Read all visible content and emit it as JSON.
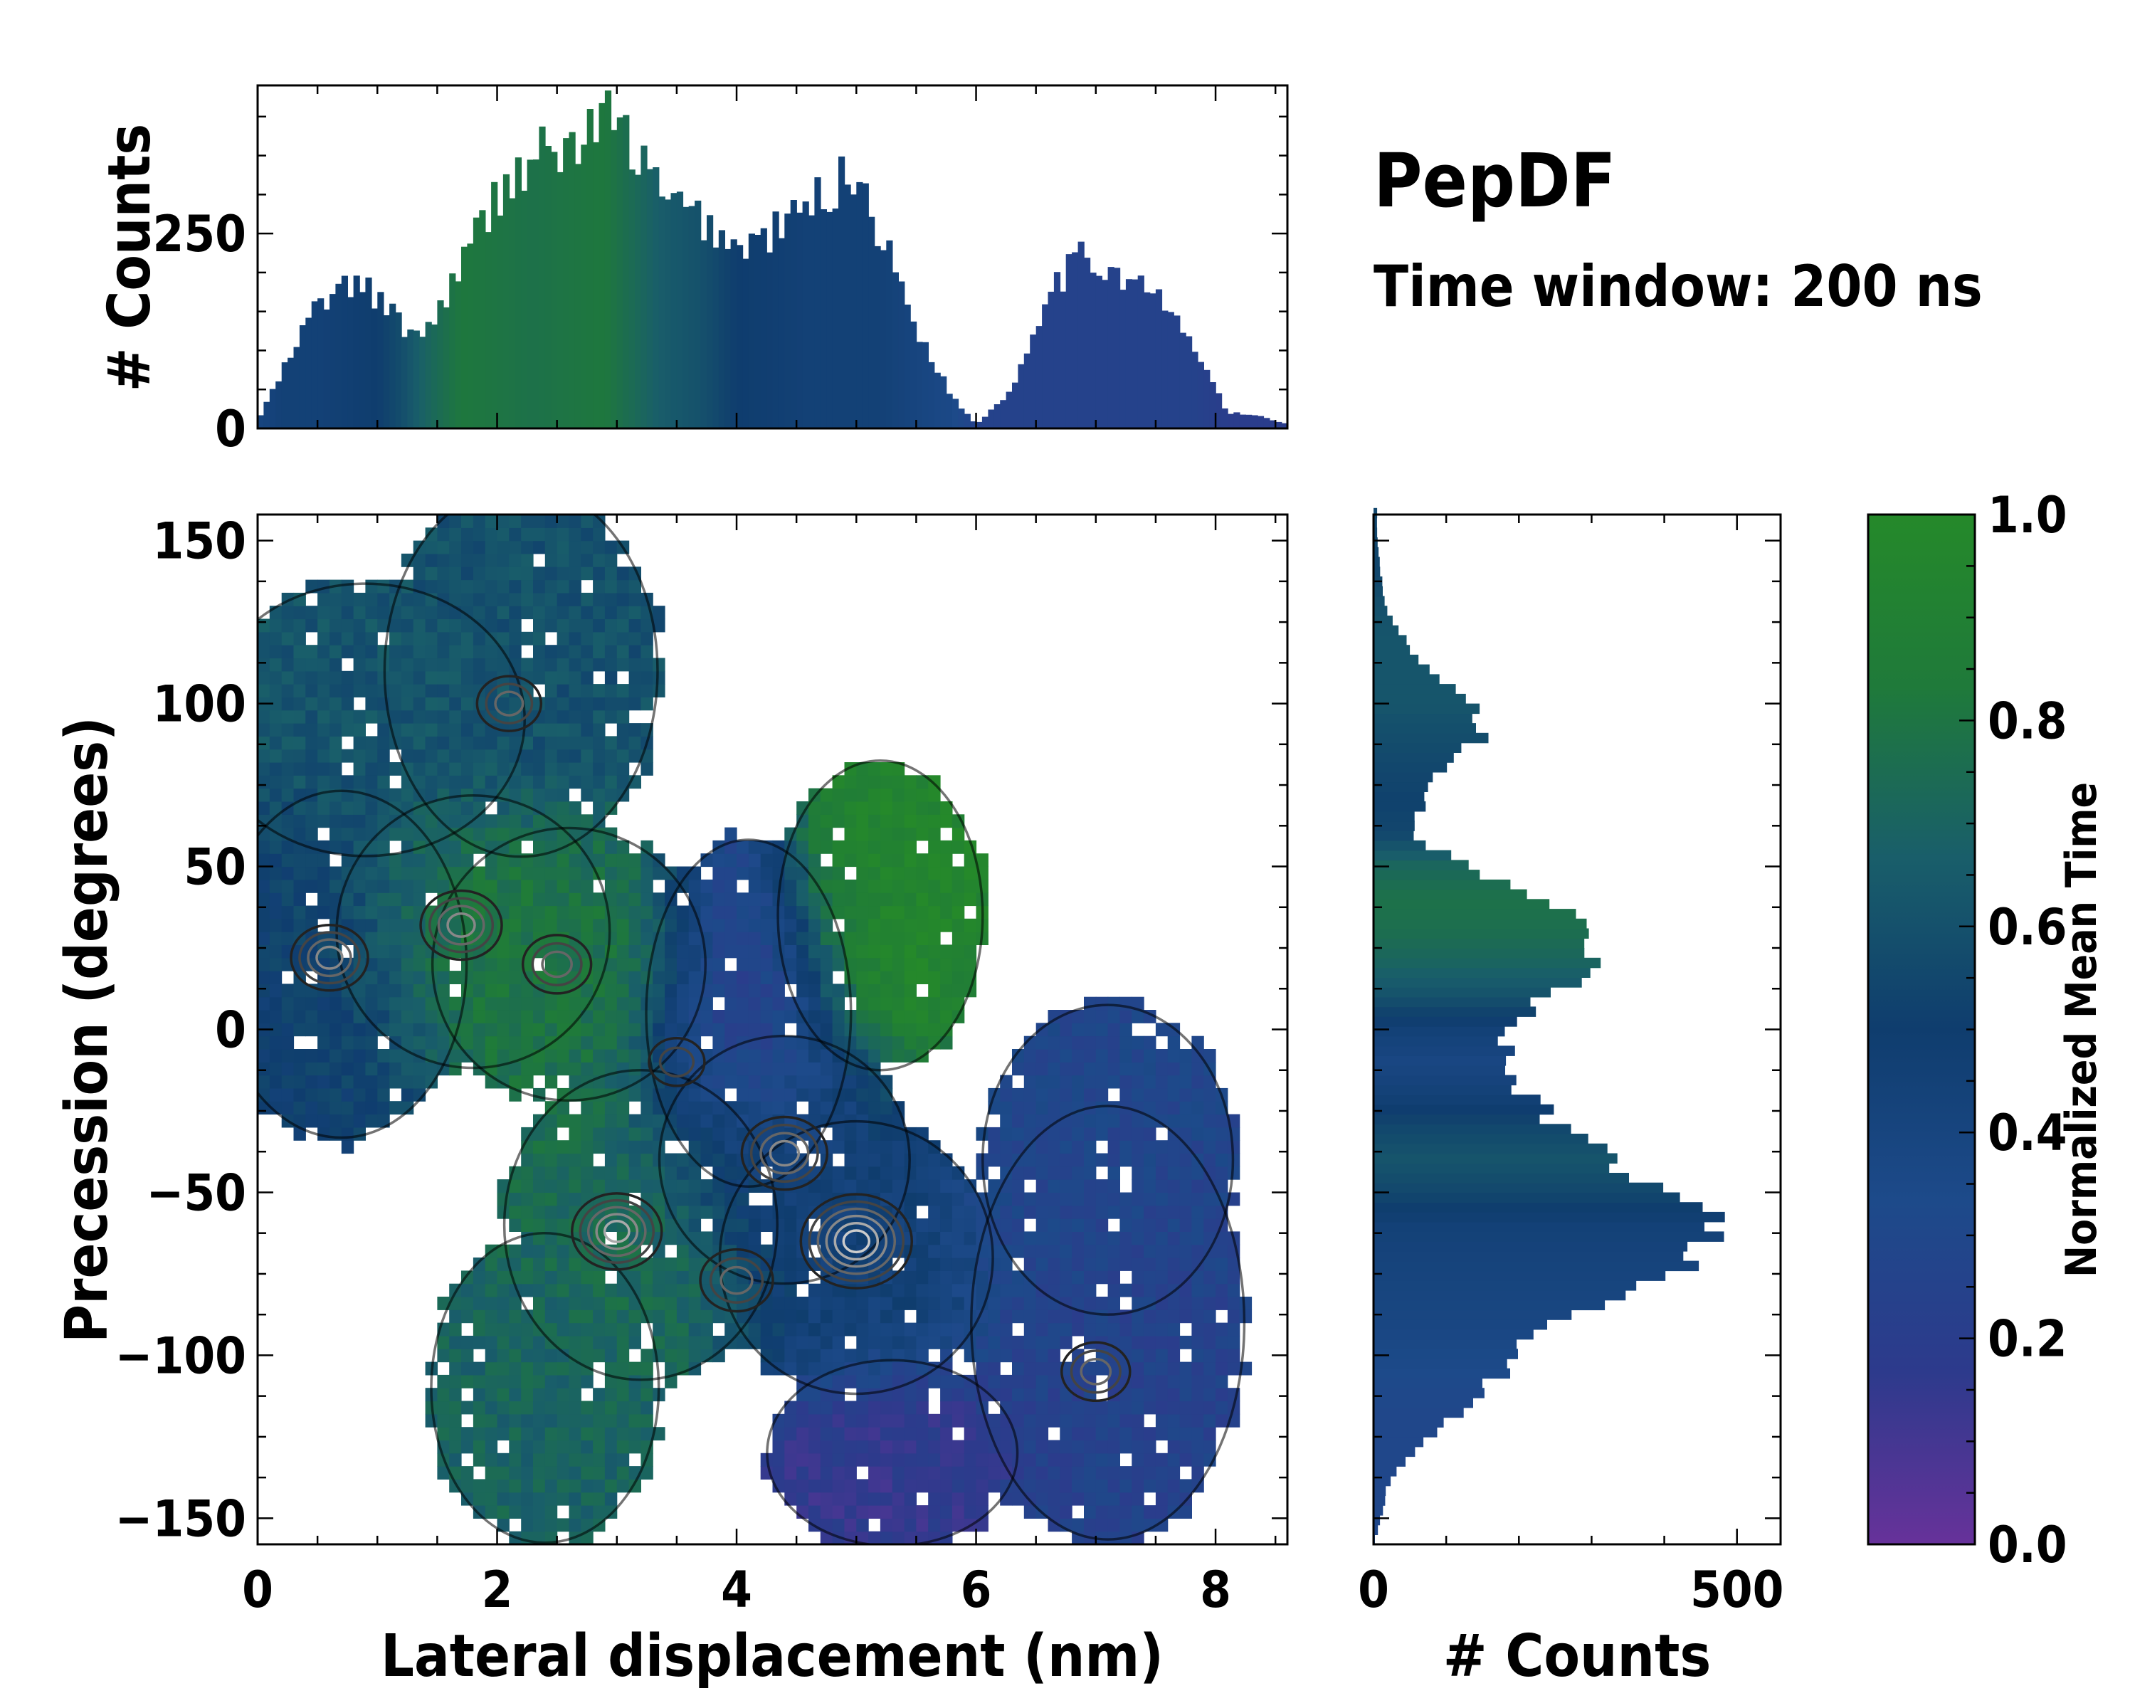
{
  "chart_data": {
    "type": "heatmap",
    "title": "PepDF",
    "subtitle": "Time window: 200 ns",
    "main": {
      "xlabel": "Lateral displacement (nm)",
      "ylabel": "Precession (degrees)",
      "xlim": [
        0,
        8.6
      ],
      "ylim": [
        -158,
        158
      ],
      "xticks": [
        0,
        2,
        4,
        6,
        8
      ],
      "yticks": [
        150,
        100,
        50,
        0,
        -50,
        -100,
        -150
      ],
      "ytick_labels": [
        "150",
        "100",
        "50",
        "0",
        "−50",
        "−100",
        "−150"
      ],
      "clusters": [
        {
          "cx": 0.7,
          "cy": 20,
          "sx": 0.55,
          "sy": 28,
          "t": 0.5
        },
        {
          "cx": 0.9,
          "cy": 95,
          "sx": 0.7,
          "sy": 22,
          "t": 0.62
        },
        {
          "cx": 2.2,
          "cy": 110,
          "sx": 0.6,
          "sy": 30,
          "t": 0.6
        },
        {
          "cx": 1.8,
          "cy": 30,
          "sx": 0.6,
          "sy": 22,
          "t": 0.85
        },
        {
          "cx": 2.6,
          "cy": 20,
          "sx": 0.6,
          "sy": 22,
          "t": 0.78
        },
        {
          "cx": 5.2,
          "cy": 35,
          "sx": 0.45,
          "sy": 25,
          "t": 0.95
        },
        {
          "cx": 4.1,
          "cy": 5,
          "sx": 0.45,
          "sy": 28,
          "t": 0.2
        },
        {
          "cx": 3.2,
          "cy": -60,
          "sx": 0.6,
          "sy": 25,
          "t": 0.75
        },
        {
          "cx": 4.4,
          "cy": -40,
          "sx": 0.55,
          "sy": 20,
          "t": 0.45
        },
        {
          "cx": 5.0,
          "cy": -70,
          "sx": 0.6,
          "sy": 22,
          "t": 0.45
        },
        {
          "cx": 2.4,
          "cy": -110,
          "sx": 0.5,
          "sy": 25,
          "t": 0.7
        },
        {
          "cx": 5.3,
          "cy": -130,
          "sx": 0.55,
          "sy": 15,
          "t": 0.15
        },
        {
          "cx": 7.1,
          "cy": -90,
          "sx": 0.6,
          "sy": 35,
          "t": 0.25
        },
        {
          "cx": 7.1,
          "cy": -40,
          "sx": 0.55,
          "sy": 25,
          "t": 0.3
        }
      ],
      "density_peaks": [
        {
          "x": 5.0,
          "y": -65,
          "w": 1.0
        },
        {
          "x": 4.4,
          "y": -38,
          "w": 0.7
        },
        {
          "x": 3.0,
          "y": -62,
          "w": 0.75
        },
        {
          "x": 4.0,
          "y": -77,
          "w": 0.55
        },
        {
          "x": 1.7,
          "y": 32,
          "w": 0.65
        },
        {
          "x": 2.5,
          "y": 20,
          "w": 0.5
        },
        {
          "x": 0.6,
          "y": 22,
          "w": 0.6
        },
        {
          "x": 2.1,
          "y": 100,
          "w": 0.45
        },
        {
          "x": 7.0,
          "y": -105,
          "w": 0.5
        },
        {
          "x": 3.5,
          "y": -10,
          "w": 0.35
        }
      ]
    },
    "top_hist": {
      "ylabel": "# Counts",
      "ylim": [
        0,
        440
      ],
      "yticks": [
        0,
        250
      ],
      "xlim": [
        0,
        8.6
      ],
      "bin_width": 0.05,
      "x": [
        0.0,
        0.2,
        0.5,
        0.8,
        1.0,
        1.2,
        1.4,
        1.7,
        2.0,
        2.3,
        2.6,
        2.9,
        3.1,
        3.4,
        3.7,
        4.0,
        4.3,
        4.6,
        4.8,
        5.0,
        5.2,
        5.5,
        5.8,
        6.0,
        6.3,
        6.6,
        6.9,
        7.2,
        7.5,
        7.8,
        8.1,
        8.4,
        8.6
      ],
      "counts": [
        10,
        70,
        160,
        185,
        170,
        130,
        120,
        210,
        300,
        350,
        355,
        400,
        370,
        290,
        270,
        230,
        250,
        285,
        310,
        330,
        250,
        130,
        40,
        5,
        50,
        180,
        220,
        200,
        170,
        110,
        20,
        15,
        5
      ],
      "time": [
        0.4,
        0.45,
        0.45,
        0.48,
        0.5,
        0.58,
        0.7,
        0.82,
        0.8,
        0.78,
        0.8,
        0.82,
        0.75,
        0.65,
        0.6,
        0.5,
        0.48,
        0.45,
        0.45,
        0.45,
        0.45,
        0.4,
        0.35,
        0.25,
        0.25,
        0.25,
        0.25,
        0.25,
        0.25,
        0.25,
        0.2,
        0.2,
        0.2
      ]
    },
    "right_hist": {
      "xlabel": "# Counts",
      "xlim": [
        0,
        560
      ],
      "xticks": [
        0,
        500
      ],
      "ylim": [
        -158,
        158
      ],
      "bin_width": 3,
      "y": [
        150,
        140,
        130,
        120,
        110,
        100,
        90,
        80,
        70,
        60,
        50,
        40,
        30,
        20,
        10,
        0,
        -10,
        -20,
        -30,
        -40,
        -50,
        -60,
        -70,
        -80,
        -90,
        -100,
        -110,
        -120,
        -130,
        -140,
        -150,
        -158
      ],
      "counts": [
        5,
        10,
        15,
        40,
        80,
        140,
        150,
        90,
        70,
        50,
        130,
        240,
        280,
        300,
        240,
        180,
        180,
        210,
        260,
        330,
        420,
        470,
        450,
        350,
        230,
        190,
        160,
        100,
        50,
        20,
        10,
        0
      ],
      "time": [
        0.55,
        0.55,
        0.6,
        0.62,
        0.62,
        0.62,
        0.58,
        0.55,
        0.52,
        0.55,
        0.72,
        0.78,
        0.76,
        0.7,
        0.6,
        0.45,
        0.38,
        0.45,
        0.55,
        0.62,
        0.55,
        0.45,
        0.42,
        0.4,
        0.38,
        0.35,
        0.32,
        0.3,
        0.3,
        0.3,
        0.3,
        0.3
      ]
    },
    "colorbar": {
      "label": "Normalized Mean Time",
      "range": [
        0,
        1
      ],
      "ticks": [
        "1.0",
        "0.8",
        "0.6",
        "0.4",
        "0.2",
        "0.0"
      ],
      "colors": [
        "#67329a",
        "#2d3a8c",
        "#1d4a8a",
        "#0f3d6e",
        "#195e6a",
        "#1f7a3a",
        "#25892a"
      ]
    }
  }
}
